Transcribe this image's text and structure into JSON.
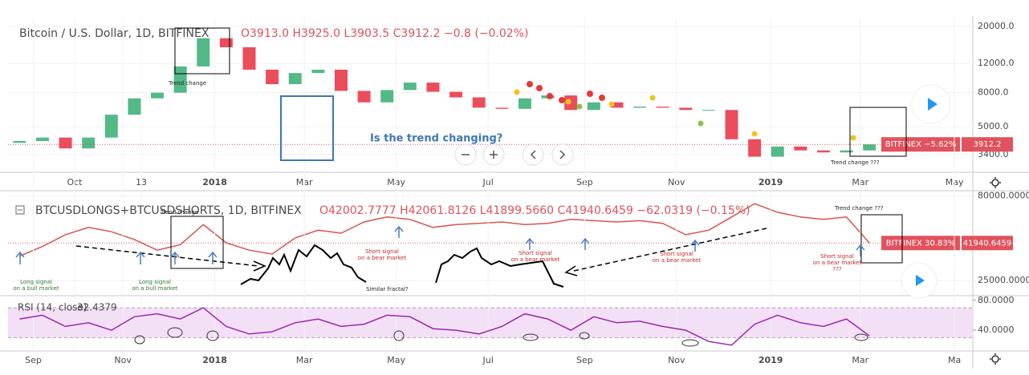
{
  "chart_data": [
    {
      "type": "candlestick",
      "title": "Bitcoin / U.S. Dollar, 1D, BITFINEX",
      "ohlc_text": "O3913.0  H3925.0  L3903.5  C3912.2  −0.8 (−0.02%)",
      "badge": "BITFINEX −5.62%",
      "up_color": "#53b987",
      "down_color": "#eb4d5c",
      "log": true,
      "grid": true,
      "open": [
        4000,
        4100,
        4300,
        3700,
        4300,
        5900,
        7400,
        8000,
        11500,
        17000,
        15000,
        11000,
        9000,
        10500,
        11000,
        8200,
        7000,
        8300,
        9200,
        8100,
        7500,
        6500,
        6400,
        7400,
        7700,
        6300,
        7000,
        6500,
        6600,
        6500,
        6300,
        6300,
        4200,
        3300,
        3800,
        3600,
        3500,
        3600
      ],
      "close": [
        4100,
        4300,
        3700,
        4300,
        5900,
        7400,
        8000,
        11500,
        17000,
        15000,
        11000,
        9000,
        10500,
        11000,
        8200,
        7000,
        8300,
        9200,
        8100,
        7500,
        6500,
        6400,
        7400,
        7700,
        6300,
        7000,
        6500,
        6600,
        6500,
        6300,
        6300,
        4200,
        3300,
        3800,
        3600,
        3500,
        3600,
        3912.2
      ],
      "xlim": [
        -0.5,
        41.5
      ],
      "xticks": [
        {
          "value": 2.4,
          "label": "Oct"
        },
        {
          "value": 5.3,
          "label": "13"
        },
        {
          "value": 8.5,
          "label": "2018"
        },
        {
          "value": 12.4,
          "label": "Mar"
        },
        {
          "value": 16.4,
          "label": "May"
        },
        {
          "value": 20.4,
          "label": "Jul"
        },
        {
          "value": 24.6,
          "label": "Sep"
        },
        {
          "value": 28.6,
          "label": "Nov"
        },
        {
          "value": 32.7,
          "label": "2019"
        },
        {
          "value": 36.6,
          "label": "Mar"
        },
        {
          "value": 40.7,
          "label": "May"
        }
      ],
      "ylim": [
        2720,
        22600
      ],
      "yticks": [
        {
          "value": 20000,
          "label": "20000.0"
        },
        {
          "value": 12000,
          "label": "12000.0"
        },
        {
          "value": 8000,
          "label": "8000.0"
        },
        {
          "value": 5000,
          "label": "5000.0"
        },
        {
          "value": 3400,
          "label": "3400.0"
        }
      ],
      "annotations": [
        "Trend change",
        "Is the trend changing?",
        "Trend change ???"
      ]
    },
    {
      "type": "line",
      "title": "BTCUSDLONGS+BTCUSDSHORTS, 1D, BITFINEX",
      "ohlc_text": "O42002.7777  H42061.8126  L41899.5660  C41940.6459  −62.0319 (−0.15%)",
      "badge": "BITFINEX 30.83%",
      "color": "#d9534f",
      "log": true,
      "grid": true,
      "values": [
        35000,
        40000,
        47000,
        52000,
        49000,
        44000,
        38000,
        41000,
        54000,
        42000,
        38000,
        36000,
        45000,
        50000,
        48000,
        56000,
        60000,
        58000,
        52000,
        54000,
        55000,
        56000,
        54000,
        55000,
        58000,
        57000,
        56000,
        57000,
        55000,
        47000,
        50000,
        60000,
        72000,
        64000,
        60000,
        58000,
        60000,
        41940.6459
      ],
      "xlim": [
        -0.5,
        41.5
      ],
      "ylim": [
        20560,
        84200
      ],
      "yticks": [
        {
          "value": 80000,
          "label": "80000.0000"
        },
        {
          "value": 25000,
          "label": "25000.0000"
        }
      ],
      "annotations": [
        [
          "Trend change"
        ],
        [
          "Trend change ???"
        ],
        [
          "Long signal",
          "on a bull market"
        ],
        [
          "Long signal",
          "on a bull market"
        ],
        [
          "Short signal",
          "on a bear market"
        ],
        [
          "Short signal",
          "on a bear market"
        ],
        [
          "Short signal",
          "on a bear market"
        ],
        [
          "Short signal",
          "on a bear market",
          "???"
        ],
        [
          "Similar fractal?"
        ]
      ]
    },
    {
      "type": "line",
      "title": "RSI (14, close)",
      "color": "#9c27b0",
      "band": [
        30,
        70
      ],
      "band_color": "#f3e0f7",
      "grid": false,
      "values": [
        55,
        60,
        45,
        50,
        40,
        58,
        62,
        55,
        70,
        45,
        35,
        38,
        50,
        55,
        45,
        48,
        60,
        58,
        42,
        40,
        35,
        45,
        62,
        55,
        40,
        58,
        50,
        52,
        45,
        40,
        25,
        20,
        48,
        60,
        50,
        45,
        55,
        32.4379
      ],
      "xlim": [
        -0.5,
        41.5
      ],
      "xticks": [
        {
          "value": 0.6,
          "label": "Sep"
        },
        {
          "value": 4.5,
          "label": "Nov"
        },
        {
          "value": 8.5,
          "label": "2018"
        },
        {
          "value": 12.4,
          "label": "Mar"
        },
        {
          "value": 16.4,
          "label": "May"
        },
        {
          "value": 20.4,
          "label": "Jul"
        },
        {
          "value": 24.6,
          "label": "Sep"
        },
        {
          "value": 28.6,
          "label": "Nov"
        },
        {
          "value": 32.7,
          "label": "2019"
        },
        {
          "value": 36.6,
          "label": "Mar"
        },
        {
          "value": 40.7,
          "label": "Ma"
        }
      ],
      "ylim": [
        13.3,
        85.1
      ],
      "yticks": [
        {
          "value": 80,
          "label": "80.0000"
        },
        {
          "value": 40,
          "label": "40.0000"
        }
      ]
    }
  ]
}
